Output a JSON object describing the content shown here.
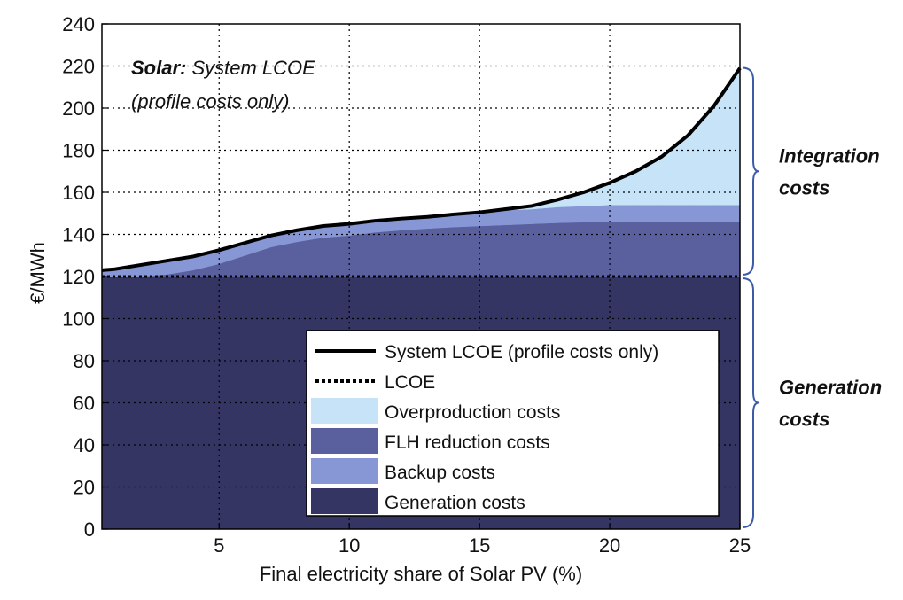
{
  "chart_data": {
    "type": "area",
    "xlabel": "Final electricity share of Solar PV (%)",
    "ylabel": "€/MWh",
    "xlim": [
      0.5,
      25
    ],
    "ylim": [
      0,
      240
    ],
    "xticks": [
      5,
      10,
      15,
      20,
      25
    ],
    "yticks": [
      0,
      20,
      40,
      60,
      80,
      100,
      120,
      140,
      160,
      180,
      200,
      220,
      240
    ],
    "grid": true,
    "legend_position": "bottom-right",
    "annotation": {
      "bold": "Solar:",
      "line1": " System LCOE",
      "line2": "(profile costs only)"
    },
    "side_labels": [
      {
        "line1": "Integration",
        "line2": "costs",
        "range": [
          120,
          220
        ]
      },
      {
        "line1": "Generation",
        "line2": "costs",
        "range": [
          0,
          120
        ]
      }
    ],
    "x": [
      0.5,
      1,
      2,
      3,
      4,
      5,
      6,
      7,
      8,
      9,
      10,
      11,
      12,
      13,
      14,
      15,
      16,
      17,
      18,
      19,
      20,
      21,
      22,
      23,
      24,
      25
    ],
    "series": [
      {
        "name": "Generation costs",
        "color": "#343563",
        "kind": "area",
        "values": [
          120,
          120,
          120,
          120,
          120,
          120,
          120,
          120,
          120,
          120,
          120,
          120,
          120,
          120,
          120,
          120,
          120,
          120,
          120,
          120,
          120,
          120,
          120,
          120,
          120,
          120
        ]
      },
      {
        "name": "FLH reduction costs",
        "color": "#5a5f9e",
        "kind": "area",
        "values": [
          0,
          0,
          0,
          1,
          3,
          6,
          10,
          14,
          16.5,
          18.5,
          19.5,
          21,
          22,
          22.8,
          23.5,
          24,
          24.5,
          25,
          25.5,
          25.8,
          26,
          26,
          26,
          26,
          26,
          26
        ]
      },
      {
        "name": "Backup costs",
        "color": "#8797d6",
        "kind": "area",
        "values": [
          3,
          3.5,
          5.5,
          6.5,
          6.5,
          6.5,
          6,
          5.5,
          5.5,
          5.5,
          5.5,
          5.5,
          5.5,
          5.5,
          6,
          6.5,
          7,
          7,
          7.5,
          7.7,
          8,
          8,
          8,
          8,
          8,
          8
        ]
      },
      {
        "name": "Overproduction costs",
        "color": "#c6e3f8",
        "kind": "area",
        "values": [
          0,
          0,
          0,
          0,
          0,
          0,
          0,
          0,
          0,
          0,
          0,
          0,
          0,
          0,
          0,
          0,
          0.5,
          1.5,
          3.5,
          6.5,
          10.5,
          16,
          23,
          33,
          47,
          65
        ]
      },
      {
        "name": "System LCOE (profile costs only)",
        "color": "#000000",
        "kind": "line",
        "values": [
          123,
          123.5,
          125.5,
          127.5,
          129.5,
          132.5,
          136,
          139.5,
          142,
          144,
          145,
          146.5,
          147.5,
          148.3,
          149.5,
          150.5,
          152,
          153.5,
          156.5,
          160,
          164.5,
          170,
          177,
          187,
          201,
          219
        ]
      },
      {
        "name": "LCOE",
        "color": "#000000",
        "kind": "dotted",
        "values": [
          120,
          120,
          120,
          120,
          120,
          120,
          120,
          120,
          120,
          120,
          120,
          120,
          120,
          120,
          120,
          120,
          120,
          120,
          120,
          120,
          120,
          120,
          120,
          120,
          120,
          120
        ]
      }
    ],
    "legend_order": [
      "System LCOE (profile costs only)",
      "LCOE",
      "Overproduction costs",
      "FLH reduction costs",
      "Backup costs",
      "Generation costs"
    ]
  }
}
